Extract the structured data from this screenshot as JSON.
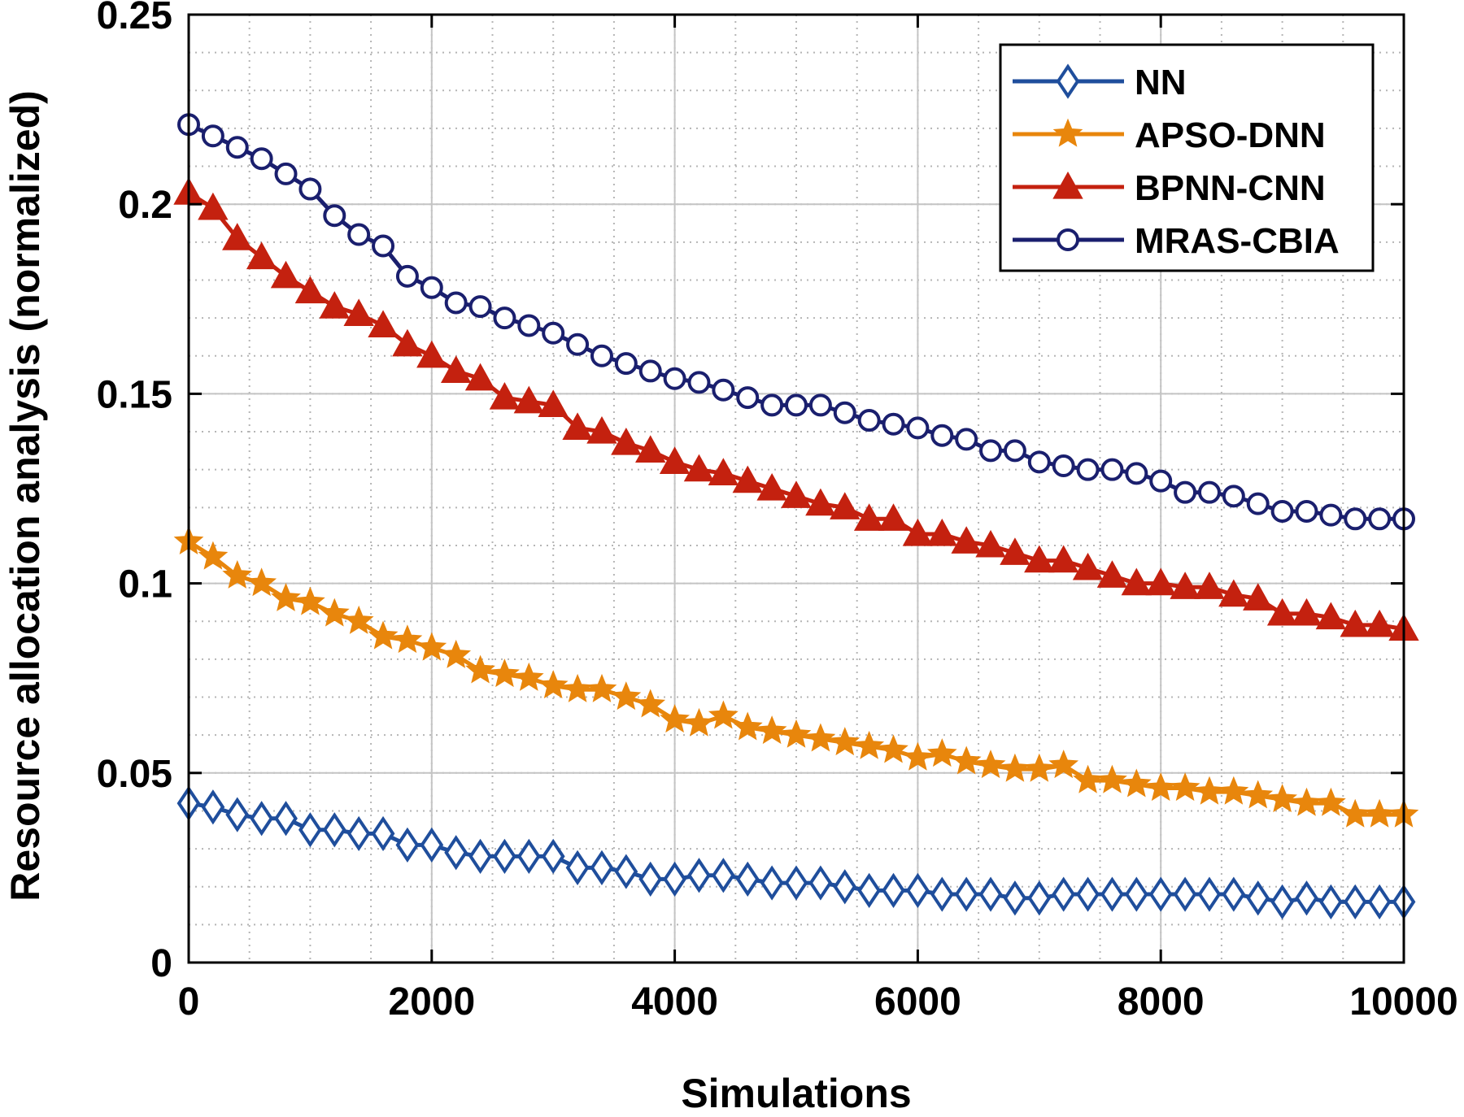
{
  "chart_data": {
    "type": "line",
    "title": "",
    "xlabel": "Simulations",
    "ylabel": "Resource allocation analysis (normalized)",
    "xlim": [
      0,
      10000
    ],
    "ylim": [
      0,
      0.25
    ],
    "x_ticks": [
      0,
      2000,
      4000,
      6000,
      8000,
      10000
    ],
    "y_ticks": [
      0,
      0.05,
      0.1,
      0.15,
      0.2,
      0.25
    ],
    "x_tick_labels": [
      "0",
      "2000",
      "4000",
      "6000",
      "8000",
      "10000"
    ],
    "y_tick_labels": [
      "0",
      "0.05",
      "0.1",
      "0.15",
      "0.2",
      "0.25"
    ],
    "grid": true,
    "legend_position": "top-right",
    "x": [
      0,
      200,
      400,
      600,
      800,
      1000,
      1200,
      1400,
      1600,
      1800,
      2000,
      2200,
      2400,
      2600,
      2800,
      3000,
      3200,
      3400,
      3600,
      3800,
      4000,
      4200,
      4400,
      4600,
      4800,
      5000,
      5200,
      5400,
      5600,
      5800,
      6000,
      6200,
      6400,
      6600,
      6800,
      7000,
      7200,
      7400,
      7600,
      7800,
      8000,
      8200,
      8400,
      8600,
      8800,
      9000,
      9200,
      9400,
      9600,
      9800,
      10000
    ],
    "series": [
      {
        "name": "NN",
        "color": "#1f4e9c",
        "marker": "diamond",
        "values": [
          0.042,
          0.041,
          0.039,
          0.038,
          0.038,
          0.035,
          0.035,
          0.034,
          0.034,
          0.031,
          0.031,
          0.029,
          0.028,
          0.028,
          0.028,
          0.028,
          0.025,
          0.025,
          0.024,
          0.022,
          0.022,
          0.023,
          0.023,
          0.022,
          0.021,
          0.021,
          0.021,
          0.02,
          0.019,
          0.019,
          0.019,
          0.018,
          0.018,
          0.018,
          0.017,
          0.017,
          0.018,
          0.018,
          0.018,
          0.018,
          0.018,
          0.018,
          0.018,
          0.018,
          0.017,
          0.016,
          0.017,
          0.016,
          0.016,
          0.016,
          0.016
        ]
      },
      {
        "name": "APSO-DNN",
        "color": "#e8860c",
        "marker": "star",
        "values": [
          0.111,
          0.107,
          0.102,
          0.1,
          0.096,
          0.095,
          0.092,
          0.09,
          0.086,
          0.085,
          0.083,
          0.081,
          0.077,
          0.076,
          0.075,
          0.073,
          0.072,
          0.072,
          0.07,
          0.068,
          0.064,
          0.063,
          0.065,
          0.062,
          0.061,
          0.06,
          0.059,
          0.058,
          0.057,
          0.056,
          0.054,
          0.055,
          0.053,
          0.052,
          0.051,
          0.051,
          0.052,
          0.048,
          0.048,
          0.047,
          0.046,
          0.046,
          0.045,
          0.045,
          0.044,
          0.043,
          0.042,
          0.042,
          0.039,
          0.039,
          0.039
        ]
      },
      {
        "name": "BPNN-CNN",
        "color": "#c4210f",
        "marker": "triangle",
        "values": [
          0.203,
          0.199,
          0.191,
          0.186,
          0.181,
          0.177,
          0.173,
          0.171,
          0.168,
          0.163,
          0.16,
          0.156,
          0.154,
          0.149,
          0.148,
          0.147,
          0.141,
          0.14,
          0.137,
          0.135,
          0.132,
          0.13,
          0.129,
          0.127,
          0.125,
          0.123,
          0.121,
          0.12,
          0.117,
          0.117,
          0.113,
          0.113,
          0.111,
          0.11,
          0.108,
          0.106,
          0.106,
          0.104,
          0.102,
          0.1,
          0.1,
          0.099,
          0.099,
          0.097,
          0.096,
          0.092,
          0.092,
          0.091,
          0.089,
          0.089,
          0.088
        ]
      },
      {
        "name": "MRAS-CBIA",
        "color": "#1a1f6e",
        "marker": "circle",
        "values": [
          0.221,
          0.218,
          0.215,
          0.212,
          0.208,
          0.204,
          0.197,
          0.192,
          0.189,
          0.181,
          0.178,
          0.174,
          0.173,
          0.17,
          0.168,
          0.166,
          0.163,
          0.16,
          0.158,
          0.156,
          0.154,
          0.153,
          0.151,
          0.149,
          0.147,
          0.147,
          0.147,
          0.145,
          0.143,
          0.142,
          0.141,
          0.139,
          0.138,
          0.135,
          0.135,
          0.132,
          0.131,
          0.13,
          0.13,
          0.129,
          0.127,
          0.124,
          0.124,
          0.123,
          0.121,
          0.119,
          0.119,
          0.118,
          0.117,
          0.117,
          0.117
        ]
      }
    ]
  }
}
